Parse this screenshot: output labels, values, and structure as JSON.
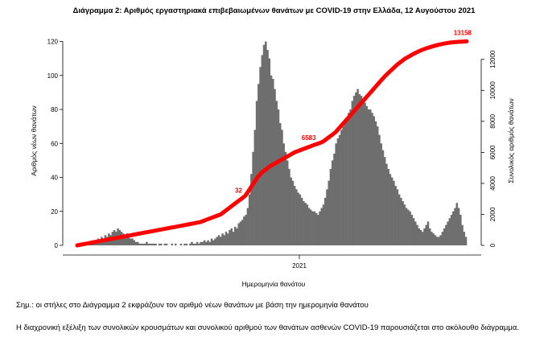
{
  "chart_data": {
    "type": "bar",
    "title": "Διάγραμμα 2: Αριθμός εργαστηριακά επιβεβαιωμένων θανάτων με COVID-19 στην Ελλάδα, 12 Αυγούστου 2021",
    "xlabel": "Ημερομηνία θανάτου",
    "ylabel": "Αριθμός νέων θανάτων",
    "y2label": "Συνολικός αριθμός θανάτων",
    "x_ticks": [
      "2021"
    ],
    "ylim": [
      0,
      125
    ],
    "yticks": [
      0,
      20,
      40,
      60,
      80,
      100,
      120
    ],
    "y2lim": [
      0,
      13700
    ],
    "y2ticks": [
      0,
      2000,
      4000,
      6000,
      8000,
      10000,
      12000
    ],
    "grid": false,
    "series": [
      {
        "kind": "bar",
        "color": "#6e6e6e",
        "values": [
          0,
          0,
          1,
          1,
          2,
          1,
          2,
          2,
          3,
          2,
          3,
          4,
          3,
          5,
          4,
          6,
          5,
          7,
          6,
          8,
          9,
          8,
          10,
          9,
          8,
          7,
          6,
          7,
          5,
          4,
          4,
          3,
          2,
          2,
          1,
          1,
          1,
          1,
          2,
          1,
          1,
          1,
          1,
          1,
          0,
          1,
          1,
          0,
          1,
          1,
          0,
          0,
          1,
          0,
          1,
          0,
          0,
          1,
          0,
          1,
          1,
          0,
          1,
          2,
          1,
          1,
          2,
          1,
          2,
          2,
          3,
          2,
          3,
          2,
          4,
          3,
          4,
          5,
          6,
          5,
          7,
          6,
          8,
          7,
          9,
          10,
          8,
          11,
          10,
          13,
          14,
          15,
          17,
          18,
          22,
          30,
          42,
          55,
          68,
          85,
          95,
          105,
          112,
          118,
          120,
          115,
          110,
          100,
          98,
          92,
          85,
          80,
          72,
          68,
          60,
          55,
          50,
          45,
          40,
          38,
          35,
          33,
          31,
          30,
          28,
          26,
          25,
          24,
          22,
          21,
          20,
          20,
          19,
          18,
          20,
          22,
          24,
          28,
          33,
          38,
          45,
          50,
          54,
          60,
          63,
          65,
          68,
          70,
          72,
          75,
          78,
          80,
          85,
          88,
          90,
          92,
          89,
          88,
          86,
          84,
          82,
          80,
          80,
          78,
          76,
          73,
          70,
          65,
          60,
          56,
          52,
          48,
          45,
          42,
          40,
          38,
          35,
          33,
          30,
          28,
          26,
          24,
          22,
          21,
          20,
          18,
          16,
          14,
          12,
          10,
          9,
          8,
          10,
          12,
          14,
          10,
          8,
          7,
          6,
          5,
          5,
          6,
          8,
          10,
          12,
          14,
          16,
          18,
          20,
          22,
          25,
          22,
          18,
          12,
          8,
          5
        ]
      },
      {
        "kind": "line",
        "color": "#ff0000",
        "axis": "right",
        "values": [
          0,
          50,
          100,
          150,
          200,
          250,
          300,
          350,
          400,
          450,
          500,
          550,
          600,
          650,
          700,
          750,
          800,
          850,
          900,
          950,
          1000,
          1050,
          1100,
          1150,
          1200,
          1250,
          1300,
          1350,
          1400,
          1450,
          1500,
          1600,
          1700,
          1800,
          1900,
          2000,
          2200,
          2400,
          2600,
          2800,
          3000,
          3200,
          3600,
          4000,
          4400,
          4700,
          4900,
          5100,
          5250,
          5400,
          5550,
          5700,
          5850,
          6000,
          6100,
          6200,
          6300,
          6400,
          6500,
          6583,
          6700,
          6900,
          7100,
          7300,
          7600,
          7900,
          8200,
          8500,
          8800,
          9100,
          9400,
          9700,
          10000,
          10300,
          10600,
          10900,
          11150,
          11400,
          11650,
          11850,
          12050,
          12200,
          12350,
          12480,
          12600,
          12700,
          12780,
          12860,
          12930,
          12990,
          13040,
          13080,
          13110,
          13130,
          13145,
          13158
        ]
      }
    ],
    "annotations": [
      {
        "text": "6583",
        "series_index": 59
      },
      {
        "text": "13158",
        "series_index": 95
      },
      {
        "text": "32",
        "series_index": 41
      }
    ]
  },
  "notes": {
    "note1": "Σημ.: οι στήλες στο Διάγραμμα 2 εκφράζουν τον αριθμό νέων θανάτων με βάση την ημερομηνία θανάτου",
    "note2": "Η διαχρονική εξέλιξη των συνολικών κρουσμάτων και συνολικού αριθμού των θανάτων ασθενών COVID-19 παρουσιάζεται στο ακόλουθο διάγραμμα."
  }
}
